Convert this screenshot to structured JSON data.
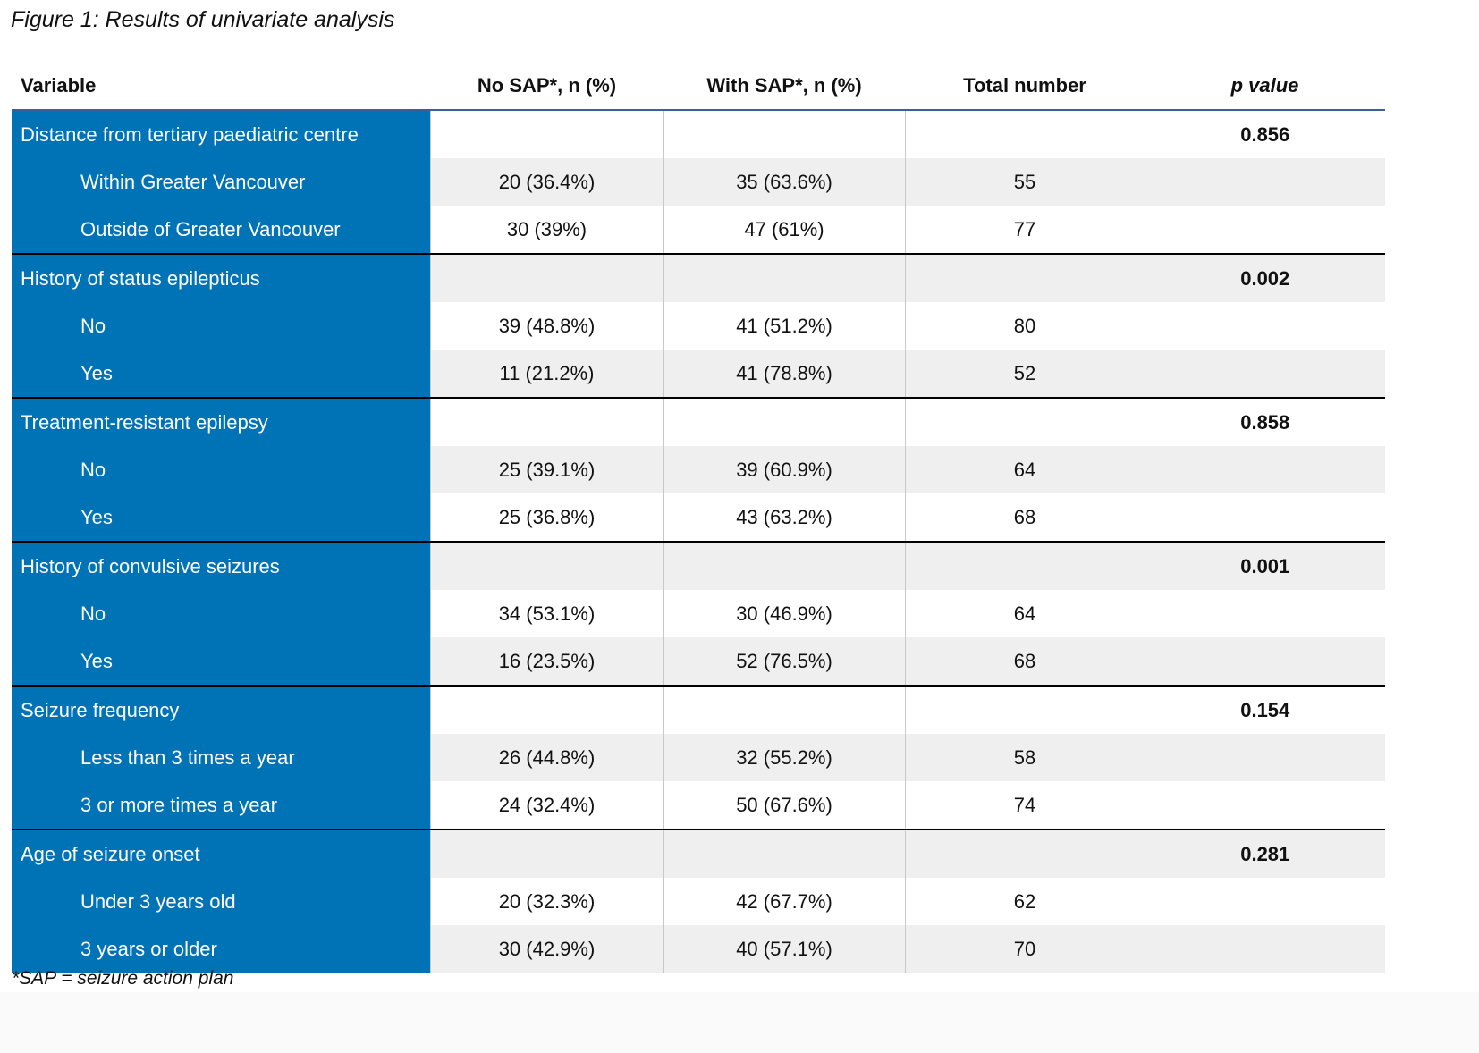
{
  "title": "Figure 1: Results of univariate analysis",
  "colors": {
    "variable_column": "#0072b6",
    "stripe": "#efefef"
  },
  "headers": [
    "Variable",
    "No SAP*, n (%)",
    "With SAP*, n (%)",
    "Total number",
    "p value"
  ],
  "groups": [
    {
      "label": "Distance from tertiary paediatric centre",
      "p": "0.856",
      "rows": [
        {
          "label": "Within Greater Vancouver",
          "no_sap": "20 (36.4%)",
          "with_sap": "35 (63.6%)",
          "total": "55"
        },
        {
          "label": "Outside of Greater Vancouver",
          "no_sap": "30 (39%)",
          "with_sap": "47 (61%)",
          "total": "77"
        }
      ]
    },
    {
      "label": "History of status epilepticus",
      "p": "0.002",
      "rows": [
        {
          "label": "No",
          "no_sap": "39 (48.8%)",
          "with_sap": "41 (51.2%)",
          "total": "80"
        },
        {
          "label": "Yes",
          "no_sap": "11 (21.2%)",
          "with_sap": "41 (78.8%)",
          "total": "52"
        }
      ]
    },
    {
      "label": "Treatment-resistant epilepsy",
      "p": "0.858",
      "rows": [
        {
          "label": "No",
          "no_sap": "25 (39.1%)",
          "with_sap": "39 (60.9%)",
          "total": "64"
        },
        {
          "label": "Yes",
          "no_sap": "25 (36.8%)",
          "with_sap": "43 (63.2%)",
          "total": "68"
        }
      ]
    },
    {
      "label": "History of convulsive seizures",
      "p": "0.001",
      "rows": [
        {
          "label": "No",
          "no_sap": "34 (53.1%)",
          "with_sap": "30 (46.9%)",
          "total": "64"
        },
        {
          "label": "Yes",
          "no_sap": "16 (23.5%)",
          "with_sap": "52 (76.5%)",
          "total": "68"
        }
      ]
    },
    {
      "label": "Seizure frequency",
      "p": "0.154",
      "rows": [
        {
          "label": "Less than 3 times a year",
          "no_sap": "26 (44.8%)",
          "with_sap": "32 (55.2%)",
          "total": "58"
        },
        {
          "label": "3 or more times a year",
          "no_sap": "24 (32.4%)",
          "with_sap": "50 (67.6%)",
          "total": "74"
        }
      ]
    },
    {
      "label": "Age of seizure onset",
      "p": "0.281",
      "rows": [
        {
          "label": "Under 3 years old",
          "no_sap": "20 (32.3%)",
          "with_sap": "42 (67.7%)",
          "total": "62"
        },
        {
          "label": "3 years or older",
          "no_sap": "30 (42.9%)",
          "with_sap": "40 (57.1%)",
          "total": "70"
        }
      ]
    }
  ],
  "footnote": "*SAP = seizure action plan"
}
